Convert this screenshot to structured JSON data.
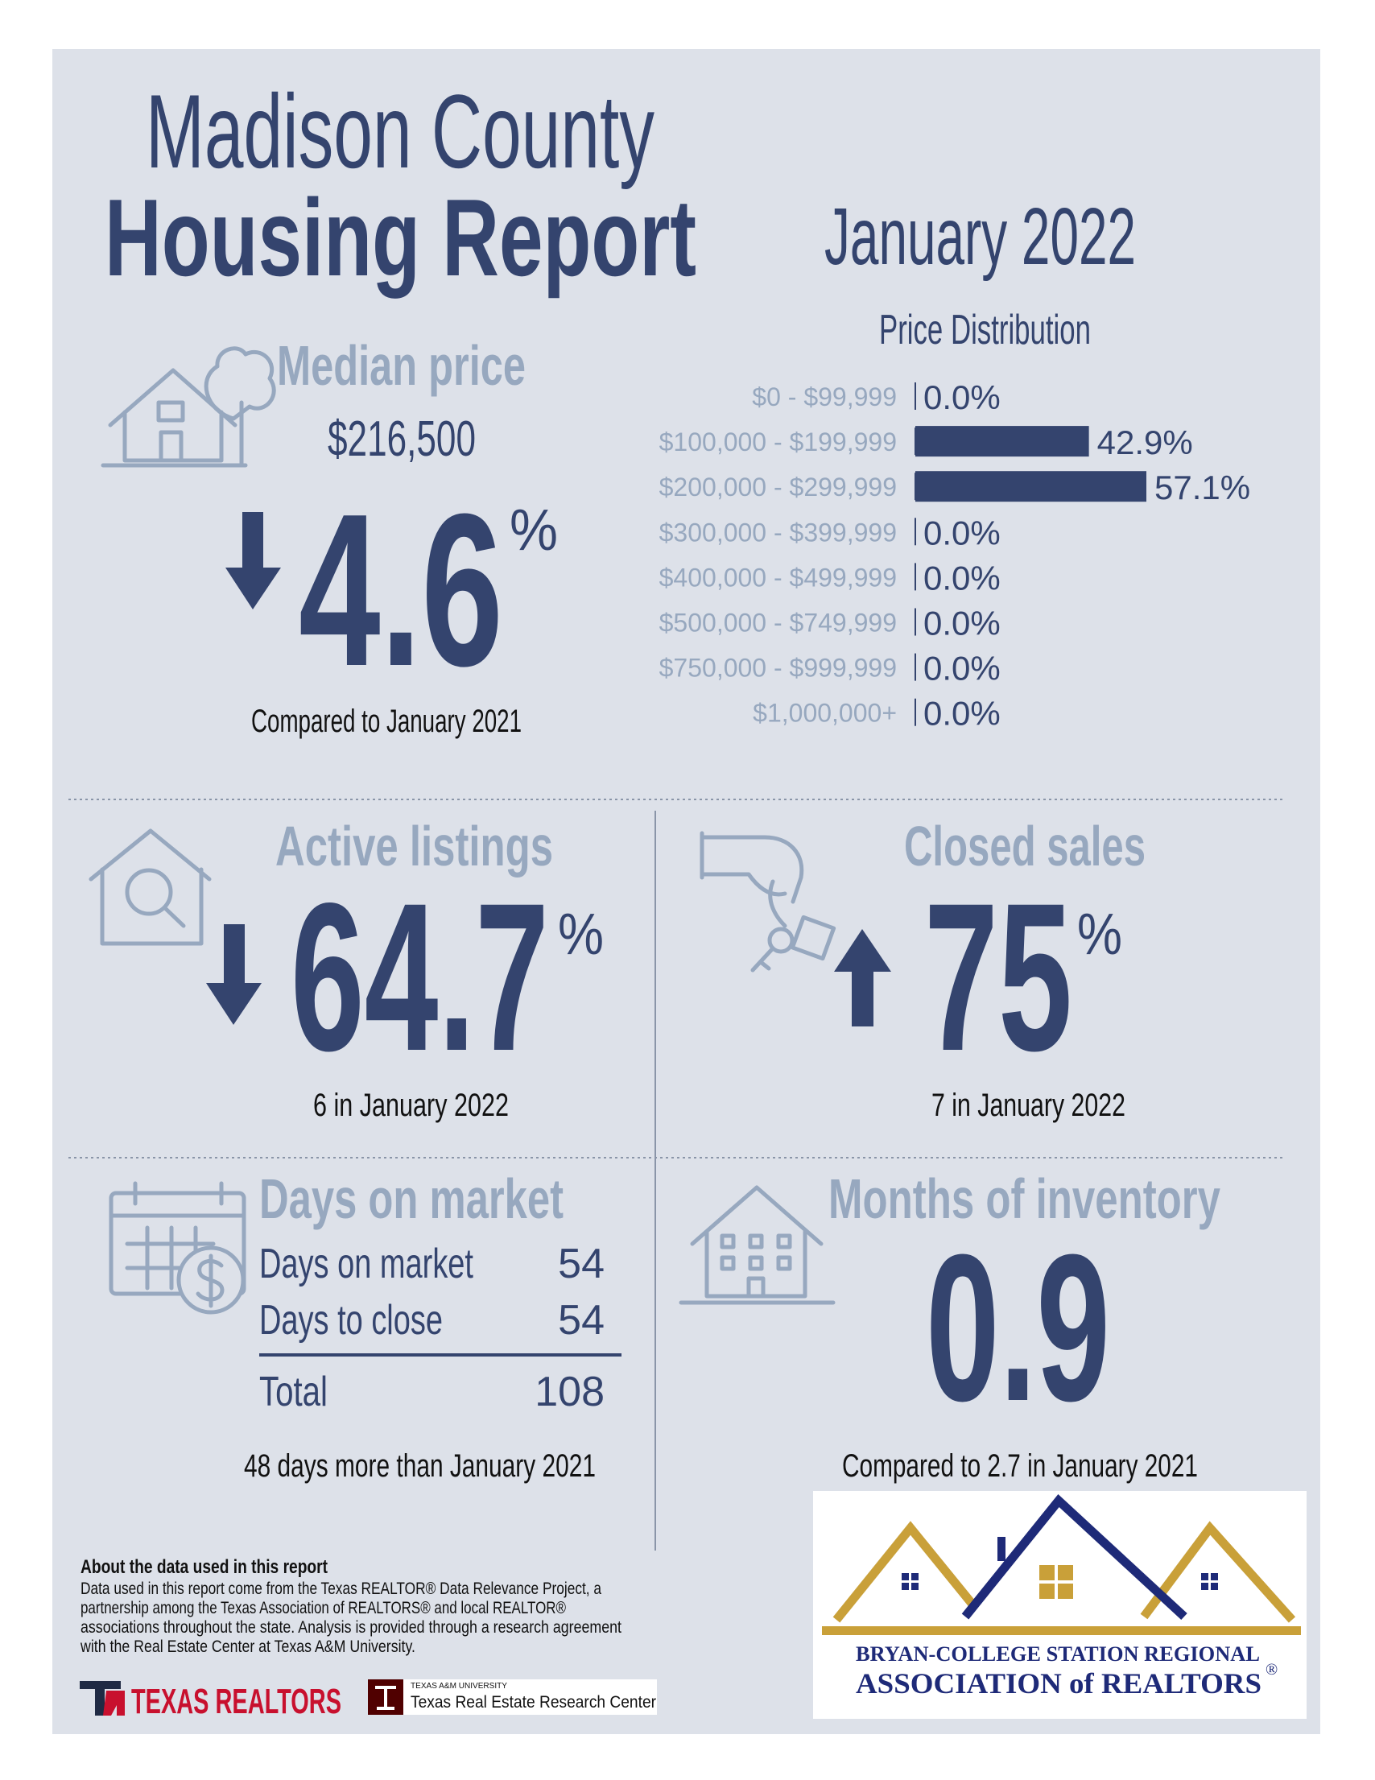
{
  "header": {
    "title_line1": "Madison County",
    "title_line2": "Housing Report",
    "period": "January 2022"
  },
  "median_price": {
    "label": "Median price",
    "value": "$216,500",
    "change": "4.6",
    "unit": "%",
    "note": "Compared to January 2021"
  },
  "price_distribution": {
    "type": "bar",
    "title": "Price Distribution",
    "categories": [
      "$0 - $99,999",
      "$100,000 - $199,999",
      "$200,000 - $299,999",
      "$300,000 - $399,999",
      "$400,000 - $499,999",
      "$500,000 - $749,999",
      "$750,000 - $999,999",
      "$1,000,000+"
    ],
    "values": [
      0,
      42.9,
      57.1,
      0,
      0,
      0,
      0,
      0
    ],
    "value_labels": [
      "0.0%",
      "42.9%",
      "57.1%",
      "0.0%",
      "0.0%",
      "0.0%",
      "0.0%",
      "0.0%"
    ],
    "color": "#34446e"
  },
  "active_listings": {
    "label": "Active listings",
    "change": "64.7",
    "unit": "%",
    "note": "6 in January 2022"
  },
  "closed_sales": {
    "label": "Closed sales",
    "change": "75",
    "unit": "%",
    "note": "7 in January 2022"
  },
  "days_on_market": {
    "label": "Days on market",
    "rows": [
      [
        "Days on market",
        "54"
      ],
      [
        "Days to close",
        "54"
      ],
      [
        "Total",
        "108"
      ]
    ],
    "note": "48 days more than January 2021"
  },
  "months_of_inventory": {
    "label": "Months of inventory",
    "value": "0.9",
    "note": "Compared to 2.7 in January 2021"
  },
  "about": {
    "title": "About the data used in this report",
    "lines": [
      "Data used in this report come from the Texas REALTOR® Data Relevance Project, a",
      "partnership among the Texas Association of REALTORS® and local REALTOR®",
      "associations throughout the state. Analysis is provided through a research agreement",
      "with the Real Estate Center at Texas A&M University."
    ]
  },
  "logos": {
    "texas_realtors": "TEXAS REALTORS",
    "tamu_small": "TEXAS A&M UNIVERSITY",
    "tamu": "Texas Real Estate Research Center",
    "bcs_line1": "BRYAN-COLLEGE STATION REGIONAL",
    "bcs_line2": "ASSOCIATION of REALTORS",
    "bcs_mark": "®"
  }
}
